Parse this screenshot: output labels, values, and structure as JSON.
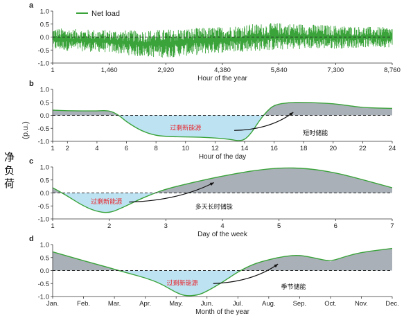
{
  "side_label": [
    "净",
    "负",
    "荷"
  ],
  "ylabel": "(p.u.)",
  "colors": {
    "green": "#3aa33a",
    "surplus_fill": "#bde3f3",
    "storage_fill": "#aab0b8",
    "zero_line": "#222222",
    "surplus_text": "#e8232a",
    "axis": "#333333"
  },
  "chart_data": [
    {
      "panel": "a",
      "type": "area",
      "legend": "Net load",
      "xlabel": "Hour of the year",
      "xlim": [
        1,
        8760
      ],
      "ylim": [
        -1.0,
        1.0
      ],
      "xticks": [
        1,
        1460,
        2920,
        4380,
        5840,
        7300,
        8760
      ],
      "xtick_labels": [
        "1",
        "1,460",
        "2,920",
        "4,380",
        "5,840",
        "7,300",
        "8,760"
      ],
      "yticks": [
        -1.0,
        -0.5,
        0.0,
        0.5,
        1.0
      ],
      "ytick_labels": [
        "-1.0",
        "-0.5",
        "0.0",
        "0.5",
        "1.0"
      ],
      "envelope": {
        "x": [
          1,
          730,
          1460,
          2190,
          2920,
          3650,
          4380,
          5110,
          5840,
          6570,
          7300,
          8030,
          8760
        ],
        "upper": [
          0.35,
          0.3,
          0.28,
          0.25,
          0.3,
          0.35,
          0.4,
          0.5,
          0.55,
          0.5,
          0.45,
          0.4,
          0.38
        ],
        "lower": [
          -0.5,
          -0.55,
          -0.6,
          -0.75,
          -0.8,
          -0.7,
          -0.6,
          -0.55,
          -0.5,
          -0.45,
          -0.45,
          -0.4,
          -0.4
        ]
      }
    },
    {
      "panel": "b",
      "type": "area",
      "xlabel": "Hour of the day",
      "xlim": [
        1,
        24
      ],
      "ylim": [
        -1.0,
        1.0
      ],
      "xticks": [
        1,
        2,
        4,
        6,
        8,
        10,
        12,
        14,
        16,
        18,
        20,
        22,
        24
      ],
      "xtick_labels": [
        "1",
        "2",
        "4",
        "6",
        "8",
        "10",
        "12",
        "14",
        "16",
        "18",
        "20",
        "22",
        "24"
      ],
      "yticks": [
        -1.0,
        -0.5,
        0.0,
        0.5,
        1.0
      ],
      "ytick_labels": [
        "-1.0",
        "-0.5",
        "0.0",
        "0.5",
        "1.0"
      ],
      "x": [
        1,
        2,
        3,
        4,
        4.5,
        5,
        5.5,
        6,
        7,
        8,
        9,
        10,
        11,
        12,
        13,
        13.5,
        14,
        14.5,
        15,
        15.5,
        16,
        17,
        18,
        19,
        20,
        21,
        22,
        23,
        24
      ],
      "y": [
        0.2,
        0.18,
        0.17,
        0.17,
        0.19,
        0.15,
        0.0,
        -0.25,
        -0.6,
        -0.78,
        -0.82,
        -0.83,
        -0.84,
        -0.87,
        -0.92,
        -0.98,
        -0.95,
        -0.65,
        -0.2,
        0.15,
        0.4,
        0.5,
        0.5,
        0.48,
        0.45,
        0.38,
        0.3,
        0.28,
        0.27
      ],
      "annotations": [
        {
          "text": "过剩新能源",
          "kind": "surplus",
          "x": 10,
          "y": -0.45
        },
        {
          "text": "短时储能",
          "kind": "storage",
          "x": 18.8,
          "y": -0.65
        }
      ],
      "arrow": {
        "from": [
          13.3,
          -0.58
        ],
        "to": [
          17.3,
          0.12
        ]
      }
    },
    {
      "panel": "c",
      "type": "area",
      "xlabel": "Day of the week",
      "xlim": [
        1,
        7
      ],
      "ylim": [
        -1.0,
        1.0
      ],
      "xticks": [
        1,
        2,
        3,
        4,
        5,
        6,
        7
      ],
      "xtick_labels": [
        "1",
        "2",
        "3",
        "4",
        "5",
        "6",
        "7"
      ],
      "yticks": [
        -1.0,
        -0.5,
        0.0,
        0.5,
        1.0
      ],
      "ytick_labels": [
        "-1.0",
        "-0.5",
        "0.0",
        "0.5",
        "1.0"
      ],
      "x": [
        1,
        1.25,
        1.5,
        1.75,
        2,
        2.25,
        2.5,
        2.75,
        3,
        3.5,
        4,
        4.5,
        5,
        5.5,
        6,
        6.5,
        7
      ],
      "y": [
        0.2,
        -0.1,
        -0.45,
        -0.7,
        -0.78,
        -0.55,
        -0.28,
        -0.05,
        0.15,
        0.42,
        0.65,
        0.85,
        0.97,
        0.95,
        0.78,
        0.5,
        0.2
      ],
      "annotations": [
        {
          "text": "过剩新能源",
          "kind": "surplus",
          "x": 1.95,
          "y": -0.3
        },
        {
          "text": "多天长时储能",
          "kind": "storage",
          "x": 3.85,
          "y": -0.5
        }
      ],
      "arrow": {
        "from": [
          2.35,
          -0.35
        ],
        "to": [
          3.85,
          0.4
        ]
      }
    },
    {
      "panel": "d",
      "type": "area",
      "xlabel": "Month of the year",
      "xlim": [
        0,
        11
      ],
      "ylim": [
        -1.0,
        1.0
      ],
      "xticks": [
        0,
        1,
        2,
        3,
        4,
        5,
        6,
        7,
        8,
        9,
        10,
        11
      ],
      "xtick_labels": [
        "Jan.",
        "Feb.",
        "Mar.",
        "Apr.",
        "May.",
        "Jun.",
        "Jul.",
        "Aug.",
        "Sep.",
        "Oct.",
        "Nov.",
        "Dec."
      ],
      "yticks": [
        -1.0,
        -0.5,
        0.0,
        0.5,
        1.0
      ],
      "ytick_labels": [
        "-1.0",
        "-0.5",
        "0.0",
        "0.5",
        "1.0"
      ],
      "x": [
        0,
        0.5,
        1,
        1.5,
        2,
        2.5,
        3,
        3.5,
        4,
        4.3,
        4.7,
        5,
        5.5,
        6,
        6.5,
        7,
        7.5,
        8,
        8.5,
        9,
        9.5,
        10,
        10.5,
        11
      ],
      "y": [
        0.72,
        0.55,
        0.38,
        0.22,
        0.05,
        -0.12,
        -0.28,
        -0.5,
        -0.85,
        -0.98,
        -0.95,
        -0.8,
        -0.45,
        -0.05,
        0.25,
        0.42,
        0.55,
        0.6,
        0.48,
        0.35,
        0.55,
        0.7,
        0.78,
        0.85
      ],
      "annotations": [
        {
          "text": "过剩新能源",
          "kind": "surplus",
          "x": 4.2,
          "y": -0.45
        },
        {
          "text": "季节储能",
          "kind": "storage",
          "x": 7.8,
          "y": -0.6
        }
      ],
      "arrow": {
        "from": [
          5.2,
          -0.5
        ],
        "to": [
          7.3,
          0.25
        ]
      }
    }
  ]
}
